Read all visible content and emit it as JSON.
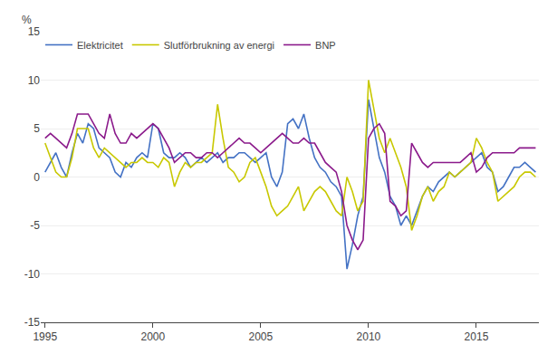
{
  "chart_data": {
    "type": "line",
    "ylabel": "%",
    "x": [
      1995.0,
      1995.25,
      1995.5,
      1995.75,
      1996.0,
      1996.25,
      1996.5,
      1996.75,
      1997.0,
      1997.25,
      1997.5,
      1997.75,
      1998.0,
      1998.25,
      1998.5,
      1998.75,
      1999.0,
      1999.25,
      1999.5,
      1999.75,
      2000.0,
      2000.25,
      2000.5,
      2000.75,
      2001.0,
      2001.25,
      2001.5,
      2001.75,
      2002.0,
      2002.25,
      2002.5,
      2002.75,
      2003.0,
      2003.25,
      2003.5,
      2003.75,
      2004.0,
      2004.25,
      2004.5,
      2004.75,
      2005.0,
      2005.25,
      2005.5,
      2005.75,
      2006.0,
      2006.25,
      2006.5,
      2006.75,
      2007.0,
      2007.25,
      2007.5,
      2007.75,
      2008.0,
      2008.25,
      2008.5,
      2008.75,
      2009.0,
      2009.25,
      2009.5,
      2009.75,
      2010.0,
      2010.25,
      2010.5,
      2010.75,
      2011.0,
      2011.25,
      2011.5,
      2011.75,
      2012.0,
      2012.25,
      2012.5,
      2012.75,
      2013.0,
      2013.25,
      2013.5,
      2013.75,
      2014.0,
      2014.25,
      2014.5,
      2014.75,
      2015.0,
      2015.25,
      2015.5,
      2015.75,
      2016.0,
      2016.25,
      2016.5,
      2016.75,
      2017.0,
      2017.25,
      2017.5,
      2017.75
    ],
    "series": [
      {
        "name": "Elektricitet",
        "color": "#4472c4",
        "values": [
          0.5,
          1.5,
          2.5,
          1.0,
          0.0,
          2.5,
          4.5,
          3.5,
          5.5,
          5.0,
          3.0,
          2.5,
          2.0,
          0.5,
          0.0,
          1.5,
          1.0,
          2.0,
          2.5,
          2.0,
          5.5,
          5.0,
          2.5,
          2.0,
          2.0,
          2.5,
          2.0,
          1.0,
          1.5,
          2.0,
          1.5,
          2.0,
          2.5,
          1.5,
          2.0,
          2.0,
          2.5,
          2.5,
          2.0,
          1.5,
          2.0,
          2.5,
          0.0,
          -1.0,
          0.5,
          5.5,
          6.0,
          5.0,
          6.5,
          4.0,
          2.0,
          1.0,
          0.5,
          -0.5,
          -1.0,
          -2.0,
          -9.5,
          -7.0,
          -4.0,
          -2.0,
          8.0,
          5.0,
          2.0,
          0.5,
          -2.0,
          -3.0,
          -5.0,
          -4.0,
          -5.0,
          -3.5,
          -2.0,
          -1.0,
          -1.5,
          -0.5,
          0.0,
          0.5,
          0.0,
          0.5,
          1.0,
          1.5,
          2.0,
          2.5,
          1.0,
          0.5,
          -1.5,
          -1.0,
          0.0,
          1.0,
          1.0,
          1.5,
          1.0,
          0.5
        ]
      },
      {
        "name": "Slutförbrukning av energi",
        "color": "#c8c800",
        "values": [
          3.5,
          2.0,
          0.5,
          0.0,
          0.0,
          2.0,
          5.0,
          5.0,
          5.0,
          3.0,
          2.0,
          3.0,
          2.5,
          2.0,
          1.5,
          1.0,
          1.5,
          1.5,
          2.0,
          1.5,
          1.5,
          1.0,
          2.0,
          1.5,
          -1.0,
          0.5,
          1.5,
          1.0,
          1.5,
          1.5,
          2.0,
          2.5,
          7.5,
          4.0,
          1.0,
          0.5,
          -0.5,
          0.0,
          1.5,
          2.0,
          0.5,
          -1.0,
          -3.0,
          -4.0,
          -3.5,
          -3.0,
          -2.0,
          -1.0,
          -3.5,
          -2.5,
          -1.5,
          -1.0,
          -1.5,
          -2.5,
          -3.5,
          -4.0,
          0.0,
          -1.5,
          -3.5,
          -2.5,
          10.0,
          7.0,
          4.0,
          2.5,
          4.0,
          2.5,
          1.0,
          -1.0,
          -5.5,
          -4.0,
          -2.0,
          -1.0,
          -2.5,
          -1.5,
          -1.0,
          0.5,
          0.0,
          0.5,
          1.0,
          1.5,
          4.0,
          3.0,
          1.5,
          0.5,
          -2.5,
          -2.0,
          -1.5,
          -1.0,
          0.0,
          0.5,
          0.5,
          0.0
        ]
      },
      {
        "name": "BNP",
        "color": "#8b1a8b",
        "values": [
          4.0,
          4.5,
          4.0,
          3.5,
          3.0,
          4.5,
          6.5,
          6.5,
          6.5,
          5.5,
          4.5,
          4.0,
          6.5,
          4.5,
          3.5,
          3.5,
          4.5,
          4.0,
          4.5,
          5.0,
          5.5,
          5.0,
          4.0,
          3.0,
          1.5,
          2.0,
          2.5,
          2.5,
          2.0,
          2.0,
          2.5,
          2.5,
          2.0,
          2.5,
          3.0,
          3.5,
          4.0,
          3.5,
          3.5,
          3.0,
          2.5,
          3.0,
          3.5,
          4.0,
          4.5,
          4.0,
          3.5,
          3.5,
          4.0,
          3.5,
          3.5,
          2.5,
          1.5,
          1.0,
          0.5,
          -1.5,
          -5.0,
          -6.5,
          -7.5,
          -6.5,
          4.0,
          5.0,
          5.5,
          4.5,
          -2.5,
          -3.0,
          -4.0,
          -3.5,
          3.5,
          2.5,
          1.5,
          1.0,
          1.5,
          1.5,
          1.5,
          1.5,
          1.5,
          1.5,
          2.0,
          2.5,
          0.5,
          1.0,
          2.0,
          2.5,
          2.5,
          2.5,
          2.5,
          2.5,
          3.0,
          3.0,
          3.0,
          3.0
        ]
      }
    ],
    "xlim": [
      1994.8,
      2017.9
    ],
    "xticks": [
      1995,
      2000,
      2005,
      2010,
      2015
    ],
    "ylim": [
      -15,
      15
    ],
    "yticks": [
      -15,
      -10,
      -5,
      0,
      5,
      10,
      15
    ],
    "grid": true,
    "legend": "upper left"
  }
}
